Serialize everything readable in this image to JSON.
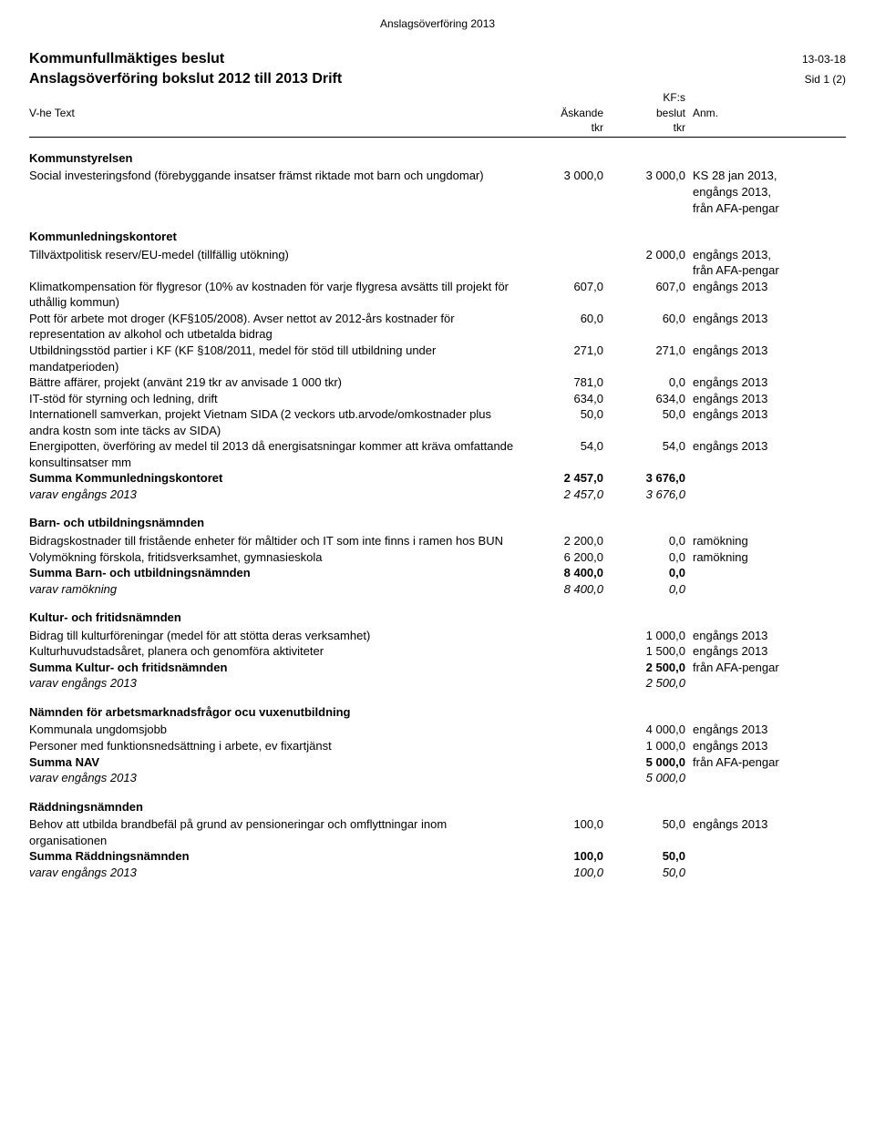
{
  "doc": {
    "top_label": "Anslagsöverföring 2013",
    "title1": "Kommunfullmäktiges beslut",
    "title2": "Anslagsöverföring bokslut 2012 till 2013 Drift",
    "date": "13-03-18",
    "sid": "Sid 1 (2)",
    "col_vhe": "V-he Text",
    "col_ask": "Äskande",
    "col_ask2": "tkr",
    "col_kfs1": "KF:s",
    "col_kfs2": "beslut",
    "col_kfs3": "tkr",
    "col_anm": "Anm."
  },
  "sections": {
    "ks": {
      "title": "Kommunstyrelsen",
      "r1_text": "Social investeringsfond (förebyggande insatser främst riktade mot barn och ungdomar)",
      "r1_ask": "3 000,0",
      "r1_kfs": "3 000,0",
      "r1_anm1": "KS 28 jan 2013,",
      "r1_anm2": "engångs 2013,",
      "r1_anm3": "från AFA-pengar"
    },
    "klk": {
      "title": "Kommunledningskontoret",
      "r1_text": "Tillväxtpolitisk reserv/EU-medel (tillfällig utökning)",
      "r1_kfs": "2 000,0",
      "r1_anm1": "engångs 2013,",
      "r1_anm2": "från AFA-pengar",
      "r2_text": "Klimatkompensation för flygresor (10% av kostnaden för varje flygresa avsätts till projekt för uthållig kommun)",
      "r2_ask": "607,0",
      "r2_kfs": "607,0",
      "r2_anm": "engångs 2013",
      "r3_text": "Pott för arbete mot droger (KF§105/2008). Avser nettot av 2012-års kostnader för representation av alkohol och utbetalda bidrag",
      "r3_ask": "60,0",
      "r3_kfs": "60,0",
      "r3_anm": "engångs 2013",
      "r4_text": "Utbildningsstöd partier i KF (KF §108/2011, medel för stöd till utbildning under mandatperioden)",
      "r4_ask": "271,0",
      "r4_kfs": "271,0",
      "r4_anm": "engångs 2013",
      "r5_text": "Bättre affärer, projekt (använt 219 tkr av anvisade 1 000 tkr)",
      "r5_ask": "781,0",
      "r5_kfs": "0,0",
      "r5_anm": "engångs 2013",
      "r6_text": "IT-stöd för styrning och ledning, drift",
      "r6_ask": "634,0",
      "r6_kfs": "634,0",
      "r6_anm": "engångs 2013",
      "r7_text": "Internationell samverkan, projekt Vietnam SIDA (2 veckors utb.arvode/omkostnader plus andra kostn som inte täcks av SIDA)",
      "r7_ask": "50,0",
      "r7_kfs": "50,0",
      "r7_anm": "engångs 2013",
      "r8_text": "Energipotten, överföring av medel til 2013 då energisatsningar kommer att kräva omfattande konsultinsatser mm",
      "r8_ask": "54,0",
      "r8_kfs": "54,0",
      "r8_anm": "engångs 2013",
      "sum_text": "Summa Kommunledningskontoret",
      "sum_ask": "2 457,0",
      "sum_kfs": "3 676,0",
      "varav_text": "varav engångs 2013",
      "varav_ask": "2 457,0",
      "varav_kfs": "3 676,0"
    },
    "bun": {
      "title": "Barn- och utbildningsnämnden",
      "r1_text": "Bidragskostnader till fristående enheter för måltider och IT som inte finns i ramen hos BUN",
      "r1_ask": "2 200,0",
      "r1_kfs": "0,0",
      "r1_anm": "ramökning",
      "r2_text": "Volymökning förskola, fritidsverksamhet, gymnasieskola",
      "r2_ask": "6 200,0",
      "r2_kfs": "0,0",
      "r2_anm": "ramökning",
      "sum_text": "Summa Barn- och utbildningsnämnden",
      "sum_ask": "8 400,0",
      "sum_kfs": "0,0",
      "varav_text": "varav ramökning",
      "varav_ask": "8 400,0",
      "varav_kfs": "0,0"
    },
    "kfn": {
      "title": "Kultur- och fritidsnämnden",
      "r1_text": "Bidrag till kulturföreningar (medel för att stötta deras verksamhet)",
      "r1_kfs": "1 000,0",
      "r1_anm": "engångs 2013",
      "r2_text": "Kulturhuvudstadsåret, planera och genomföra aktiviteter",
      "r2_kfs": "1 500,0",
      "r2_anm": "engångs 2013",
      "sum_text": "Summa Kultur- och fritidsnämnden",
      "sum_kfs": "2 500,0",
      "sum_anm": "från AFA-pengar",
      "varav_text": "varav engångs 2013",
      "varav_kfs": "2 500,0"
    },
    "nav": {
      "title": "Nämnden för arbetsmarknadsfrågor ocu vuxenutbildning",
      "r1_text": "Kommunala ungdomsjobb",
      "r1_kfs": "4 000,0",
      "r1_anm": "engångs 2013",
      "r2_text": "Personer med funktionsnedsättning i arbete, ev fixartjänst",
      "r2_kfs": "1 000,0",
      "r2_anm": "engångs 2013",
      "sum_text": "Summa NAV",
      "sum_kfs": "5 000,0",
      "sum_anm": "från AFA-pengar",
      "varav_text": "varav engångs 2013",
      "varav_kfs": "5 000,0"
    },
    "radd": {
      "title": "Räddningsnämnden",
      "r1_text": "Behov att utbilda brandbefäl på grund av pensioneringar och omflyttningar inom organisationen",
      "r1_ask": "100,0",
      "r1_kfs": "50,0",
      "r1_anm": "engångs 2013",
      "sum_text": "Summa Räddningsnämnden",
      "sum_ask": "100,0",
      "sum_kfs": "50,0",
      "varav_text": "varav engångs 2013",
      "varav_ask": "100,0",
      "varav_kfs": "50,0"
    }
  }
}
